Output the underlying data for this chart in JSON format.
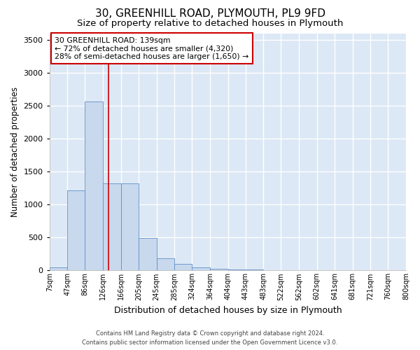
{
  "title1": "30, GREENHILL ROAD, PLYMOUTH, PL9 9FD",
  "title2": "Size of property relative to detached houses in Plymouth",
  "xlabel": "Distribution of detached houses by size in Plymouth",
  "ylabel": "Number of detached properties",
  "bin_edges": [
    7,
    47,
    86,
    126,
    166,
    205,
    245,
    285,
    324,
    364,
    404,
    443,
    483,
    522,
    562,
    602,
    641,
    681,
    721,
    760,
    800
  ],
  "bin_labels": [
    "7sqm",
    "47sqm",
    "86sqm",
    "126sqm",
    "166sqm",
    "205sqm",
    "245sqm",
    "285sqm",
    "324sqm",
    "364sqm",
    "404sqm",
    "443sqm",
    "483sqm",
    "522sqm",
    "562sqm",
    "602sqm",
    "641sqm",
    "681sqm",
    "721sqm",
    "760sqm",
    "800sqm"
  ],
  "bar_heights": [
    50,
    1220,
    2560,
    1320,
    1320,
    490,
    185,
    95,
    45,
    30,
    20,
    10,
    5,
    0,
    0,
    0,
    0,
    0,
    0,
    0
  ],
  "bar_color": "#c8d8ed",
  "bar_edge_color": "#6090c8",
  "property_size": 139,
  "vline_color": "#cc0000",
  "ylim": [
    0,
    3600
  ],
  "yticks": [
    0,
    500,
    1000,
    1500,
    2000,
    2500,
    3000,
    3500
  ],
  "annotation_text": "30 GREENHILL ROAD: 139sqm\n← 72% of detached houses are smaller (4,320)\n28% of semi-detached houses are larger (1,650) →",
  "annotation_box_color": "#ffffff",
  "annotation_box_edge": "#cc0000",
  "footer1": "Contains HM Land Registry data © Crown copyright and database right 2024.",
  "footer2": "Contains public sector information licensed under the Open Government Licence v3.0.",
  "bg_color": "#dce8f5",
  "fig_bg_color": "#ffffff",
  "grid_color": "#ffffff",
  "title1_fontsize": 11,
  "title2_fontsize": 9.5,
  "xlabel_fontsize": 9,
  "ylabel_fontsize": 8.5
}
